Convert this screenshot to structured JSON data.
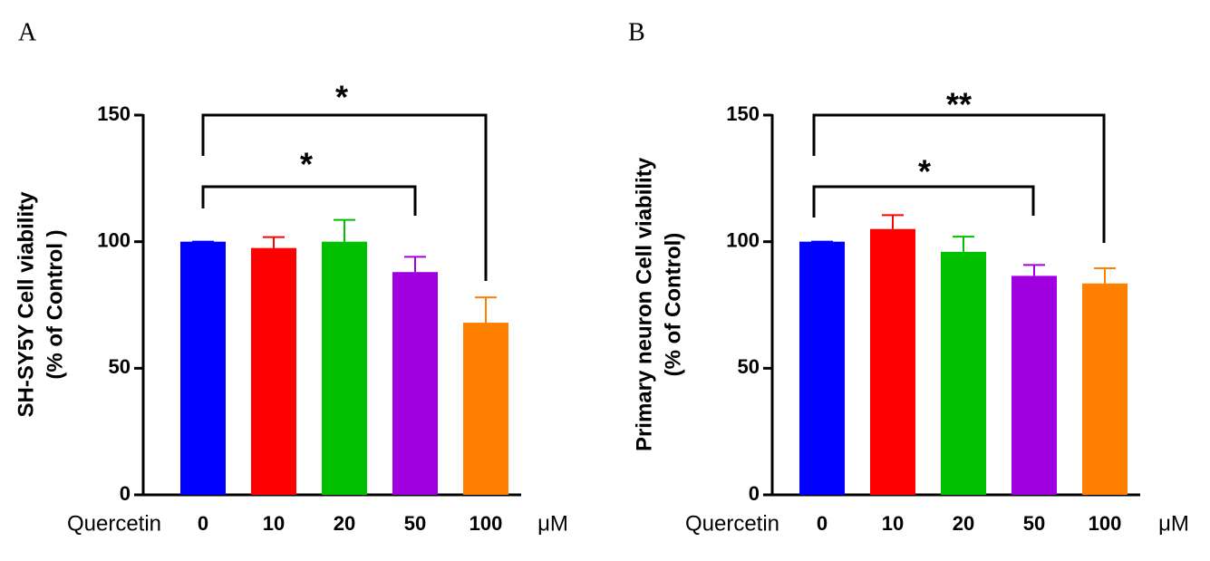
{
  "chart_data": [
    {
      "type": "bar",
      "panel": "A",
      "ylabel": [
        "SH-SY5Y Cell viability",
        "(% of Control )"
      ],
      "x_label": "Quercetin",
      "x_unit": "μM",
      "categories": [
        "0",
        "10",
        "20",
        "50",
        "100"
      ],
      "values": [
        100,
        97.5,
        100,
        88,
        68
      ],
      "errors": [
        0,
        4.3,
        8.6,
        6,
        10
      ],
      "colors": [
        "#0000ff",
        "#ff0000",
        "#00c000",
        "#a000e0",
        "#ff8000"
      ],
      "ylim": [
        0,
        150
      ],
      "yticks": [
        0,
        50,
        100,
        150
      ],
      "annotations": [
        {
          "text": "*"
        },
        {
          "text": "*"
        }
      ]
    },
    {
      "type": "bar",
      "panel": "B",
      "ylabel": [
        "Primary neuron Cell viability",
        "(% of Control)"
      ],
      "x_label": "Quercetin",
      "x_unit": "μM",
      "categories": [
        "0",
        "10",
        "20",
        "50",
        "100"
      ],
      "values": [
        100,
        105,
        96,
        86.5,
        83.5
      ],
      "errors": [
        0,
        5.5,
        6,
        4.3,
        6
      ],
      "colors": [
        "#0000ff",
        "#ff0000",
        "#00c000",
        "#a000e0",
        "#ff8000"
      ],
      "ylim": [
        0,
        150
      ],
      "yticks": [
        0,
        50,
        100,
        150
      ],
      "annotations": [
        {
          "text": "**"
        },
        {
          "text": "*"
        }
      ]
    }
  ]
}
